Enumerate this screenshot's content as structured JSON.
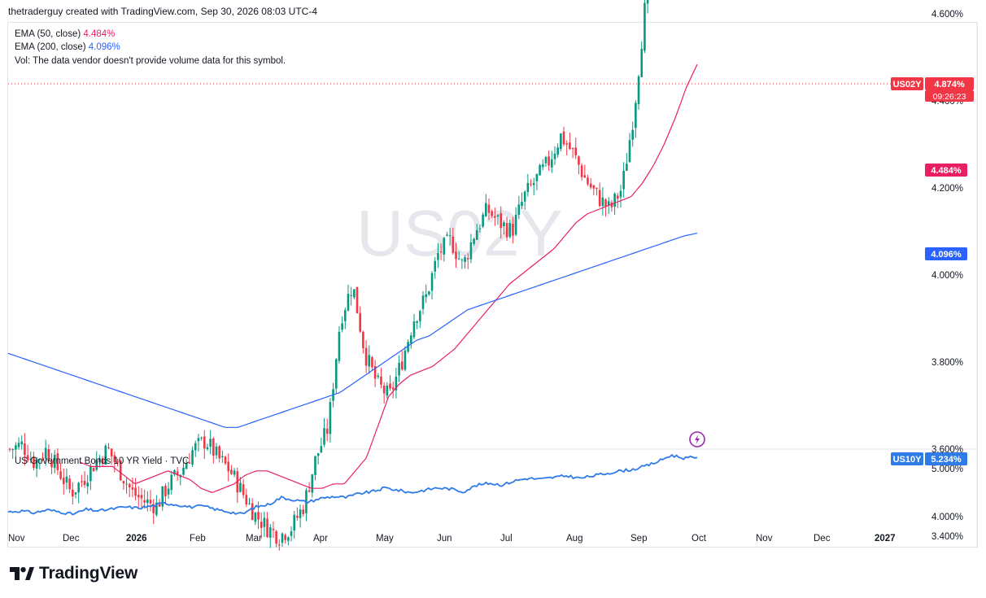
{
  "header": {
    "text": "thetraderguy created with TradingView.com, Sep 30, 2026 08:03 UTC-4"
  },
  "legend": {
    "ema50_label": "EMA (50, close)",
    "ema50_value": "4.484%",
    "ema200_label": "EMA (200, close)",
    "ema200_value": "4.096%",
    "vol_text": "Vol: The data vendor doesn't provide volume data for this symbol."
  },
  "lower_pane": {
    "title": "US Government Bonds 10 YR Yield · TVC"
  },
  "watermark": "US02Y",
  "brand": {
    "name": "TradingView"
  },
  "colors": {
    "up": "#089981",
    "down": "#f23645",
    "ema50": "#e91e63",
    "ema200": "#2962ff",
    "us10y_line": "#2f7be8",
    "tag_red": "#f23645",
    "tag_ema50": "#e91e63",
    "tag_ema200": "#2962ff",
    "tag_us10y": "#2f7be8",
    "event_icon": "#9c27b0"
  },
  "icons": {
    "event": "lightning-icon",
    "logo": "tradingview-logo-icon"
  },
  "chart_data": [
    {
      "type": "candlestick",
      "symbol": "US02Y",
      "ylim": [
        3.28,
        5.1
      ],
      "y_ticks": [
        "5.000%",
        "4.600%",
        "4.400%",
        "4.200%",
        "4.000%",
        "3.800%",
        "3.600%",
        "3.400%"
      ],
      "y_tick_values": [
        5.0,
        4.6,
        4.4,
        4.2,
        4.0,
        3.8,
        3.6,
        3.4
      ],
      "x_ticks": [
        "Nov",
        "Dec",
        "2026",
        "Feb",
        "Mar",
        "Apr",
        "May",
        "Jun",
        "Jul",
        "Aug",
        "Sep",
        "Oct",
        "Nov",
        "Dec",
        "2027"
      ],
      "x_tick_bold": [
        "2026",
        "2027"
      ],
      "series": [
        {
          "name": "US02Y",
          "anchors_close": [
            3.6,
            3.61,
            3.57,
            3.6,
            3.55,
            3.5,
            3.53,
            3.57,
            3.6,
            3.55,
            3.5,
            3.48,
            3.47,
            3.52,
            3.55,
            3.6,
            3.62,
            3.58,
            3.55,
            3.5,
            3.45,
            3.42,
            3.4,
            3.42,
            3.47,
            3.58,
            3.65,
            3.9,
            3.98,
            3.82,
            3.75,
            3.72,
            3.8,
            3.9,
            3.95,
            4.05,
            4.08,
            4.02,
            4.1,
            4.15,
            4.12,
            4.1,
            4.18,
            4.22,
            4.26,
            4.32,
            4.28,
            4.22,
            4.18,
            4.15,
            4.2,
            4.38,
            4.65,
            4.72,
            4.8,
            4.95,
            4.874
          ],
          "last": 4.874,
          "last_label": "4.874%",
          "countdown": "09:26:23"
        },
        {
          "name": "EMA (50, close)",
          "anchors": [
            3.57,
            3.56,
            3.56,
            3.56,
            3.54,
            3.52,
            3.53,
            3.54,
            3.55,
            3.54,
            3.53,
            3.51,
            3.5,
            3.51,
            3.52,
            3.54,
            3.55,
            3.55,
            3.54,
            3.53,
            3.52,
            3.51,
            3.51,
            3.52,
            3.52,
            3.55,
            3.58,
            3.65,
            3.72,
            3.75,
            3.77,
            3.78,
            3.79,
            3.81,
            3.83,
            3.86,
            3.89,
            3.92,
            3.95,
            3.98,
            4.0,
            4.02,
            4.04,
            4.06,
            4.09,
            4.12,
            4.14,
            4.15,
            4.16,
            4.17,
            4.18,
            4.21,
            4.25,
            4.3,
            4.36,
            4.43,
            4.484
          ],
          "last_label": "4.484%"
        },
        {
          "name": "EMA (200, close)",
          "anchors": [
            3.82,
            3.81,
            3.8,
            3.79,
            3.78,
            3.77,
            3.76,
            3.75,
            3.74,
            3.73,
            3.72,
            3.71,
            3.7,
            3.69,
            3.68,
            3.67,
            3.66,
            3.65,
            3.65,
            3.66,
            3.67,
            3.68,
            3.69,
            3.7,
            3.71,
            3.72,
            3.73,
            3.75,
            3.77,
            3.79,
            3.81,
            3.83,
            3.85,
            3.86,
            3.88,
            3.9,
            3.92,
            3.93,
            3.94,
            3.95,
            3.96,
            3.97,
            3.98,
            3.99,
            4.0,
            4.01,
            4.02,
            4.03,
            4.04,
            4.05,
            4.06,
            4.07,
            4.08,
            4.09,
            4.096
          ],
          "last_label": "4.096%"
        }
      ],
      "x_range": [
        "Nov 2025",
        "Sep 30 2026"
      ]
    },
    {
      "type": "line",
      "symbol": "US10Y",
      "title": "US Government Bonds 10 YR Yield · TVC",
      "ylim": [
        3.8,
        5.4
      ],
      "y_ticks": [
        "5.000%",
        "4.000%"
      ],
      "y_tick_values": [
        5.0,
        4.0
      ],
      "series": [
        {
          "name": "US10Y",
          "anchors": [
            4.1,
            4.12,
            4.08,
            4.14,
            4.1,
            4.05,
            4.15,
            4.12,
            4.16,
            4.2,
            4.18,
            4.22,
            4.28,
            4.25,
            4.2,
            4.22,
            4.15,
            4.1,
            4.05,
            4.2,
            4.25,
            4.4,
            4.35,
            4.3,
            4.38,
            4.42,
            4.4,
            4.48,
            4.52,
            4.6,
            4.55,
            4.5,
            4.55,
            4.6,
            4.58,
            4.52,
            4.65,
            4.7,
            4.66,
            4.75,
            4.8,
            4.78,
            4.82,
            4.85,
            4.8,
            4.85,
            4.9,
            4.95,
            4.98,
            5.05,
            5.15,
            5.28,
            5.22,
            5.234
          ],
          "last_label": "5.234%"
        }
      ]
    }
  ]
}
